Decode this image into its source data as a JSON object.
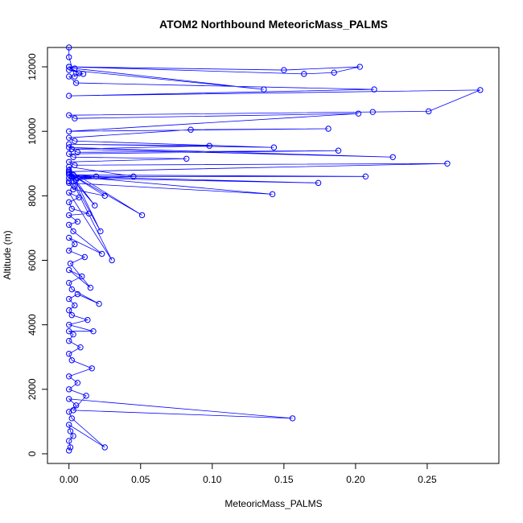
{
  "chart_data": {
    "type": "line",
    "title": "ATOM2 Northbound MeteoricMass_PALMS",
    "xlabel": "MeteoricMass_PALMS",
    "ylabel": "Altitude (m)",
    "xlim": [
      -0.015,
      0.3
    ],
    "ylim": [
      -300,
      12600
    ],
    "xticks": [
      0.0,
      0.05,
      0.1,
      0.15,
      0.2,
      0.25
    ],
    "xtick_labels": [
      "0.00",
      "0.05",
      "0.10",
      "0.15",
      "0.20",
      "0.25"
    ],
    "yticks": [
      0,
      2000,
      4000,
      6000,
      8000,
      10000,
      12000
    ],
    "ytick_labels": [
      "0",
      "2000",
      "4000",
      "6000",
      "8000",
      "10000",
      "12000"
    ],
    "grid": false,
    "legend": "none",
    "series": [
      {
        "color": "#0000ff",
        "marker": "open-circle",
        "x": [
          0.0,
          0.001,
          0.0,
          0.003,
          0.001,
          0.0,
          0.025,
          0.002,
          0.0,
          0.005,
          0.0,
          0.156,
          0.003,
          0.012,
          0.0,
          0.006,
          0.0,
          0.016,
          0.002,
          0.0,
          0.008,
          0.0,
          0.003,
          0.0,
          0.017,
          0.0,
          0.013,
          0.002,
          0.0,
          0.004,
          0.0,
          0.006,
          0.021,
          0.002,
          0.0,
          0.009,
          0.0,
          0.015,
          0.001,
          0.011,
          0.0,
          0.004,
          0.0,
          0.023,
          0.003,
          0.0,
          0.006,
          0.0,
          0.014,
          0.002,
          0.0,
          0.007,
          0.0,
          0.03,
          0.004,
          0.0,
          0.019,
          0.003,
          0.0,
          0.051,
          0.006,
          0.0,
          0.025,
          0.003,
          0.0,
          0.142,
          0.002,
          0.0,
          0.022,
          0.0,
          0.045,
          0.005,
          0.0,
          0.174,
          0.002,
          0.207,
          0.0,
          0.018,
          0.0,
          0.264,
          0.004,
          0.0,
          0.082,
          0.003,
          0.0,
          0.188,
          0.006,
          0.0,
          0.226,
          0.002,
          0.098,
          0.0,
          0.143,
          0.004,
          0.0,
          0.085,
          0.181,
          0.0,
          0.202,
          0.004,
          0.0,
          0.212,
          0.251,
          0.287,
          0.0,
          0.213,
          0.005,
          0.0,
          0.01,
          0.0,
          0.136,
          0.004,
          0.0,
          0.164,
          0.185,
          0.203,
          0.15,
          0.0,
          0.007,
          0.004,
          0.0,
          0.0
        ],
        "y": [
          100,
          200,
          400,
          550,
          700,
          900,
          200,
          1100,
          1300,
          1500,
          1700,
          1100,
          1350,
          1800,
          2000,
          2200,
          2400,
          2650,
          2900,
          3100,
          3300,
          3500,
          3700,
          3800,
          3800,
          4000,
          4150,
          4300,
          4450,
          4600,
          4800,
          4950,
          4650,
          5100,
          5300,
          5500,
          5700,
          5150,
          5900,
          6100,
          6300,
          6500,
          6700,
          6200,
          6900,
          7100,
          7200,
          7400,
          7450,
          7600,
          7800,
          7950,
          8100,
          6000,
          8300,
          8450,
          8600,
          8650,
          8800,
          7400,
          8550,
          8700,
          8000,
          8200,
          8400,
          8050,
          8600,
          8700,
          6900,
          8900,
          8600,
          8500,
          8550,
          8400,
          8600,
          8600,
          8650,
          7700,
          8750,
          9000,
          8950,
          9050,
          9150,
          9200,
          9300,
          9400,
          9350,
          9500,
          9200,
          9450,
          9550,
          9600,
          9500,
          9700,
          9800,
          10050,
          10080,
          10000,
          10550,
          10400,
          10500,
          10600,
          10620,
          11280,
          11100,
          11300,
          11500,
          11700,
          11780,
          11900,
          11300,
          11950,
          12000,
          11780,
          11820,
          12000,
          11900,
          12000,
          11800,
          11700,
          12300,
          12600
        ]
      }
    ]
  }
}
